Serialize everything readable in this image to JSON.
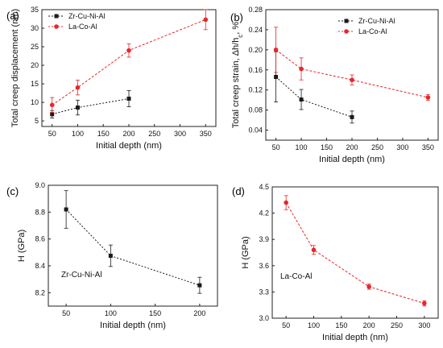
{
  "chart_data": [
    {
      "panel_label": "(a)",
      "type": "line",
      "xlabel": "Initial depth (nm)",
      "ylabel": "Total creep displacement (nm)",
      "xlim": [
        30,
        370
      ],
      "ylim": [
        3.5,
        35
      ],
      "xticks": [
        50,
        100,
        150,
        200,
        250,
        300,
        350
      ],
      "yticks": [
        5,
        10,
        15,
        20,
        25,
        30,
        35
      ],
      "legend": "top-left",
      "series": [
        {
          "name": "Zr-Cu-Ni-Al",
          "color": "#1a1a1a",
          "marker": "square",
          "x": [
            50,
            100,
            200
          ],
          "y": [
            6.8,
            8.6,
            11.0
          ],
          "err": [
            1.0,
            2.0,
            2.2
          ]
        },
        {
          "name": "La-Co-Al",
          "color": "#e8262a",
          "marker": "circle",
          "x": [
            50,
            100,
            200,
            350
          ],
          "y": [
            9.3,
            14.0,
            24.0,
            32.3
          ],
          "err": [
            2.0,
            2.0,
            1.8,
            2.7
          ]
        }
      ]
    },
    {
      "panel_label": "(b)",
      "type": "line",
      "xlabel": "Initial depth (nm)",
      "ylabel": "Total creep strain, Δh/h",
      "ylabel_sub": "c",
      "ylabel_tail": ", %",
      "xlim": [
        30,
        370
      ],
      "ylim": [
        0.02,
        0.28
      ],
      "xticks": [
        50,
        100,
        150,
        200,
        250,
        300,
        350
      ],
      "yticks": [
        "0.04",
        "0.08",
        "0.12",
        "0.16",
        "0.20",
        "0.24",
        "0.28"
      ],
      "legend": "top-right",
      "series": [
        {
          "name": "Zr-Cu-Ni-Al",
          "color": "#1a1a1a",
          "marker": "square",
          "x": [
            50,
            100,
            200
          ],
          "y": [
            0.146,
            0.101,
            0.066
          ],
          "err": [
            0.05,
            0.02,
            0.012
          ]
        },
        {
          "name": "La-Co-Al",
          "color": "#e8262a",
          "marker": "circle",
          "x": [
            50,
            100,
            200,
            350
          ],
          "y": [
            0.2,
            0.162,
            0.14,
            0.105
          ],
          "err": [
            0.045,
            0.022,
            0.01,
            0.006
          ]
        }
      ]
    },
    {
      "panel_label": "(c)",
      "type": "line",
      "xlabel": "Initial depth (nm)",
      "ylabel": "H (GPa)",
      "xlim": [
        30,
        220
      ],
      "ylim": [
        8.1,
        9.0
      ],
      "xticks": [
        50,
        100,
        150,
        200
      ],
      "yticks": [
        "8.2",
        "8.4",
        "8.6",
        "8.8",
        "9.0"
      ],
      "annotation": "Zr-Cu-Ni-Al",
      "series": [
        {
          "name": "",
          "color": "#1a1a1a",
          "marker": "square",
          "x": [
            50,
            100,
            200
          ],
          "y": [
            8.82,
            8.475,
            8.255
          ],
          "err": [
            0.14,
            0.08,
            0.06
          ]
        }
      ]
    },
    {
      "panel_label": "(d)",
      "type": "line",
      "xlabel": "Initial depth (nm)",
      "ylabel": "H (GPa)",
      "xlim": [
        25,
        325
      ],
      "ylim": [
        3.0,
        4.5
      ],
      "xticks": [
        50,
        100,
        150,
        200,
        250,
        300
      ],
      "yticks": [
        "3.0",
        "3.3",
        "3.6",
        "3.9",
        "4.2",
        "4.5"
      ],
      "annotation": "La-Co-Al",
      "series": [
        {
          "name": "",
          "color": "#e8262a",
          "marker": "circle",
          "x": [
            50,
            100,
            200,
            300
          ],
          "y": [
            4.32,
            3.78,
            3.36,
            3.17
          ],
          "err": [
            0.08,
            0.05,
            0.03,
            0.03
          ]
        }
      ]
    }
  ]
}
